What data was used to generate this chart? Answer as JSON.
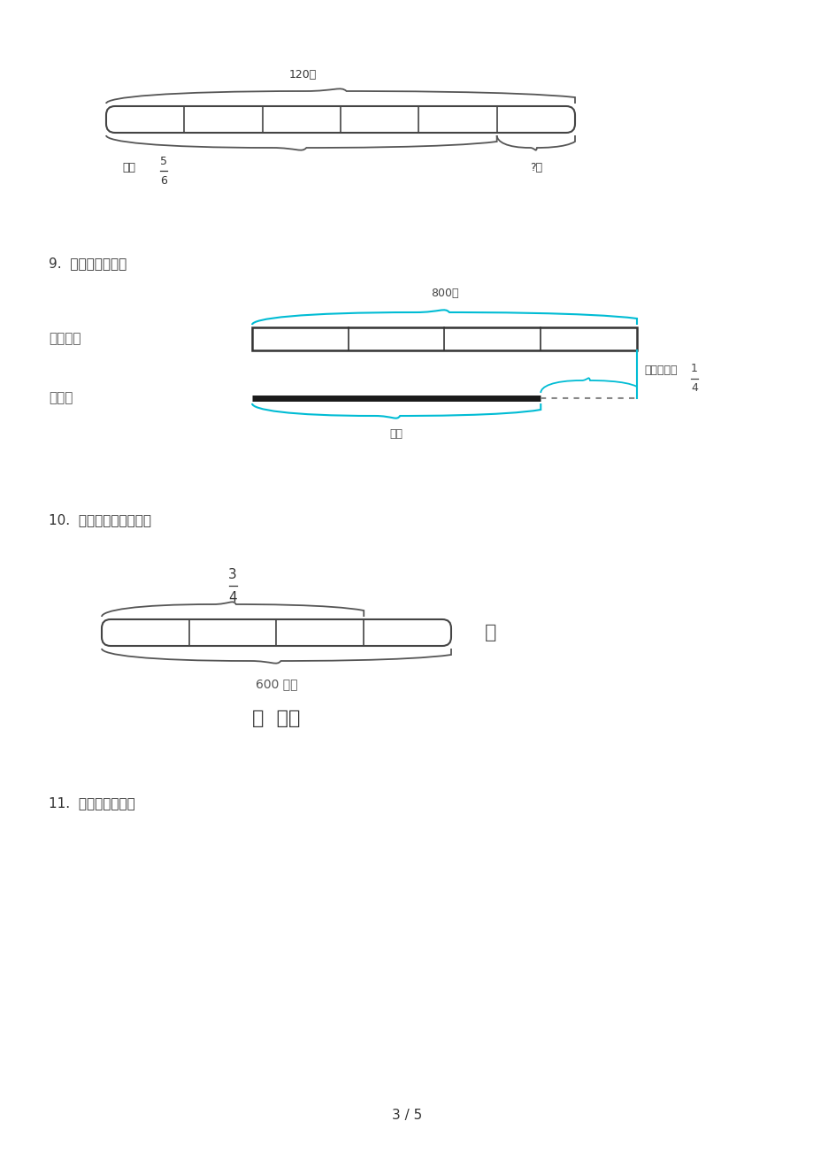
{
  "bg_color": "#ffffff",
  "page_num": "3 / 5",
  "q9_label": "9.  看图列式计算。",
  "q10_label": "10.  看图列式，并计算。",
  "q11_label": "11.  看图列式计算。",
  "d1_top_label": "120吨",
  "d1_left_label": "用去",
  "d1_frac_num": "5",
  "d1_frac_den": "6",
  "d1_right_label": "?吨",
  "q9_top_label": "800吨",
  "q9_right_label": "比原计划少",
  "q9_frac_num": "1",
  "q9_frac_den": "4",
  "q9_bot_label": "？吨",
  "q9_plan_label": "原计划：",
  "q9_actual_label": "实际：",
  "q10_frac_num": "3",
  "q10_frac_den": "4",
  "q10_bar_label": "鸡",
  "q10_brace_label": "600 千克",
  "q10_bot_label": "？  千克",
  "cyan": "#00bcd4",
  "dark": "#333333",
  "mid": "#555555"
}
